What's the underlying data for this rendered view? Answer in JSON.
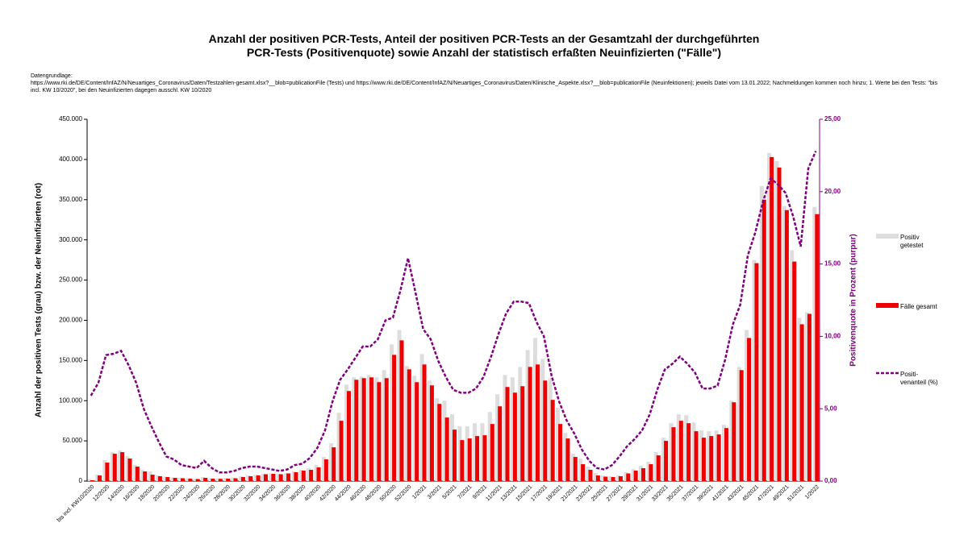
{
  "chart_data": {
    "type": "bar-line",
    "title": [
      "Anzahl der positiven PCR-Tests, Anteil der positiven PCR-Tests an der Gesamtzahl der durchgeführten",
      "PCR-Tests (Positivenquote) sowie Anzahl der statistisch erfaßten Neuinfizierten (\"Fälle\")"
    ],
    "note": [
      "Datengrundlage:",
      "https://www.rki.de/DE/Content/InfAZ/N/Neuartiges_Coronavirus/Daten/Testzahlen-gesamt.xlsx?__blob=publicationFile (Tests) und https://www.rki.de/DE/Content/InfAZ/N/Neuartiges_Coronavirus/Daten/Klinische_Aspekte.xlsx?__blob=publicationFile (Neuinfektionen); jeweils Datei vom 13.01.2022; Nachmeldungen kommen noch hinzu; 1. Werte bei den Tests: \"bis incl. KW 10/2020\", bei den Neuinfizierten dagegen ausschl. KW 10/2020"
    ],
    "y_label": "Anzahl der positiven Tests (grau) bzw. der Neuinfizierten (rot)",
    "y2_label": "Positivenquote in Prozent (purpur)",
    "categories": [
      "bis incl. KW10/2020",
      null,
      "12/2020",
      null,
      "14/2020",
      null,
      "16/2020",
      null,
      "18/2020",
      null,
      "20/2020",
      null,
      "22/2020",
      null,
      "24/2020",
      null,
      "26/2020",
      null,
      "28/2020",
      null,
      "30/2020",
      null,
      "32/2020",
      null,
      "34/2020",
      null,
      "36/2020",
      null,
      "38/2020",
      null,
      "40/2020",
      null,
      "42/2020",
      null,
      "44/2020",
      null,
      "46/2020",
      null,
      "48/2020",
      null,
      "50/2020",
      null,
      "52/2020",
      null,
      "1/2021",
      null,
      "3/2021",
      null,
      "5/2021",
      null,
      "7/2021",
      null,
      "9/2021",
      null,
      "11/2021",
      null,
      "13/2021",
      null,
      "15/2021",
      null,
      "17/2021",
      null,
      "19/2021",
      null,
      "21/2021",
      null,
      "23/2021",
      null,
      "25/2021",
      null,
      "27/2021",
      null,
      "29/2021",
      null,
      "31/2021",
      null,
      "33/2021",
      null,
      "35/2021",
      null,
      "37/2021",
      null,
      "39/2021",
      null,
      "41/2021",
      null,
      "43/2021",
      null,
      "45/2021",
      null,
      "47/2021",
      null,
      "49/2021",
      null,
      "51/2021",
      null,
      "1/2022"
    ],
    "series": [
      {
        "name": "Positiv getestet",
        "color": "#dddddd",
        "kind": "bar",
        "values": [
          2000,
          8000,
          26000,
          36000,
          38000,
          31000,
          20000,
          14000,
          12000,
          7000,
          5500,
          4500,
          4000,
          3500,
          3000,
          5000,
          3500,
          3500,
          4000,
          4500,
          6000,
          7000,
          8000,
          9000,
          9500,
          9000,
          10000,
          12000,
          14000,
          16000,
          20000,
          30000,
          47000,
          85000,
          120000,
          129000,
          130000,
          132000,
          129000,
          138000,
          170000,
          188000,
          143000,
          131000,
          158000,
          125000,
          103000,
          100000,
          83000,
          68000,
          68000,
          72000,
          72000,
          86000,
          108000,
          132000,
          129000,
          142000,
          163000,
          178000,
          152000,
          128000,
          91000,
          60000,
          34000,
          28000,
          18000,
          10000,
          7000,
          6000,
          7000,
          11000,
          15000,
          19000,
          24000,
          36000,
          54000,
          72000,
          83000,
          82000,
          73000,
          63000,
          62000,
          63000,
          70000,
          100000,
          142000,
          188000,
          275000,
          367000,
          408000,
          398000,
          342000,
          287000,
          203000,
          210000,
          341000
        ]
      },
      {
        "name": "Fälle gesamt",
        "color": "#ee0000",
        "kind": "bar",
        "values": [
          1000,
          7000,
          23000,
          34000,
          36000,
          28000,
          18000,
          12000,
          8000,
          6000,
          5000,
          4000,
          3500,
          3000,
          2500,
          4000,
          3000,
          2800,
          3000,
          3500,
          5000,
          6000,
          7000,
          8500,
          9000,
          8500,
          9500,
          11000,
          13000,
          14000,
          17000,
          27000,
          42000,
          75000,
          112000,
          126000,
          128000,
          129000,
          123000,
          128000,
          157000,
          175000,
          139000,
          123000,
          145000,
          119000,
          96000,
          79000,
          64000,
          51000,
          53000,
          56000,
          57000,
          71000,
          93000,
          117000,
          110000,
          118000,
          142000,
          145000,
          125000,
          101000,
          71000,
          53000,
          30000,
          21000,
          14000,
          7000,
          5500,
          5000,
          6000,
          9500,
          13000,
          16000,
          21000,
          32000,
          50000,
          67000,
          75000,
          72000,
          62000,
          54000,
          56000,
          58000,
          66000,
          98000,
          138000,
          178000,
          271000,
          350000,
          403000,
          390000,
          337000,
          273000,
          195000,
          208000,
          332000
        ]
      },
      {
        "name": "Positi- venanteil (%)",
        "color": "#800080",
        "kind": "line",
        "axis": "y2",
        "values": [
          5.9,
          6.8,
          8.7,
          8.8,
          9.0,
          8.0,
          6.8,
          5.0,
          3.8,
          2.7,
          1.7,
          1.5,
          1.1,
          1.0,
          0.9,
          1.4,
          0.9,
          0.6,
          0.6,
          0.7,
          0.9,
          1.0,
          1.0,
          0.9,
          0.8,
          0.7,
          0.8,
          1.1,
          1.2,
          1.6,
          2.3,
          3.5,
          5.5,
          7.0,
          7.7,
          8.5,
          9.3,
          9.3,
          9.8,
          11.1,
          11.3,
          13.2,
          15.4,
          13.0,
          10.5,
          9.8,
          8.3,
          7.2,
          6.3,
          6.1,
          6.1,
          6.4,
          7.2,
          8.6,
          10.2,
          11.6,
          12.4,
          12.4,
          12.3,
          11.0,
          10.0,
          7.3,
          5.5,
          4.2,
          3.3,
          2.2,
          1.4,
          0.9,
          0.8,
          1.1,
          1.7,
          2.4,
          2.9,
          3.5,
          4.6,
          6.3,
          7.7,
          8.1,
          8.6,
          8.1,
          7.5,
          6.4,
          6.4,
          6.6,
          8.4,
          10.8,
          12.2,
          15.6,
          17.2,
          19.3,
          20.9,
          20.5,
          19.9,
          18.3,
          16.2,
          21.6,
          22.8
        ]
      }
    ],
    "ylim": [
      0,
      450000
    ],
    "yticks": [
      {
        "value": 0,
        "label": "0"
      },
      {
        "value": 50000,
        "label": "50.000"
      },
      {
        "value": 100000,
        "label": "100.000"
      },
      {
        "value": 150000,
        "label": "150.000"
      },
      {
        "value": 200000,
        "label": "200.000"
      },
      {
        "value": 250000,
        "label": "250.000"
      },
      {
        "value": 300000,
        "label": "300.000"
      },
      {
        "value": 350000,
        "label": "350.000"
      },
      {
        "value": 400000,
        "label": "400.000"
      },
      {
        "value": 450000,
        "label": "450.000"
      }
    ],
    "y2lim": [
      0,
      25
    ],
    "y2ticks": [
      {
        "value": 0,
        "label": "0,00"
      },
      {
        "value": 5,
        "label": "5,00"
      },
      {
        "value": 10,
        "label": "10,00"
      },
      {
        "value": 15,
        "label": "15,00"
      },
      {
        "value": 20,
        "label": "20,00"
      },
      {
        "value": 25,
        "label": "25,00"
      }
    ],
    "grid": false,
    "legend": "right"
  }
}
